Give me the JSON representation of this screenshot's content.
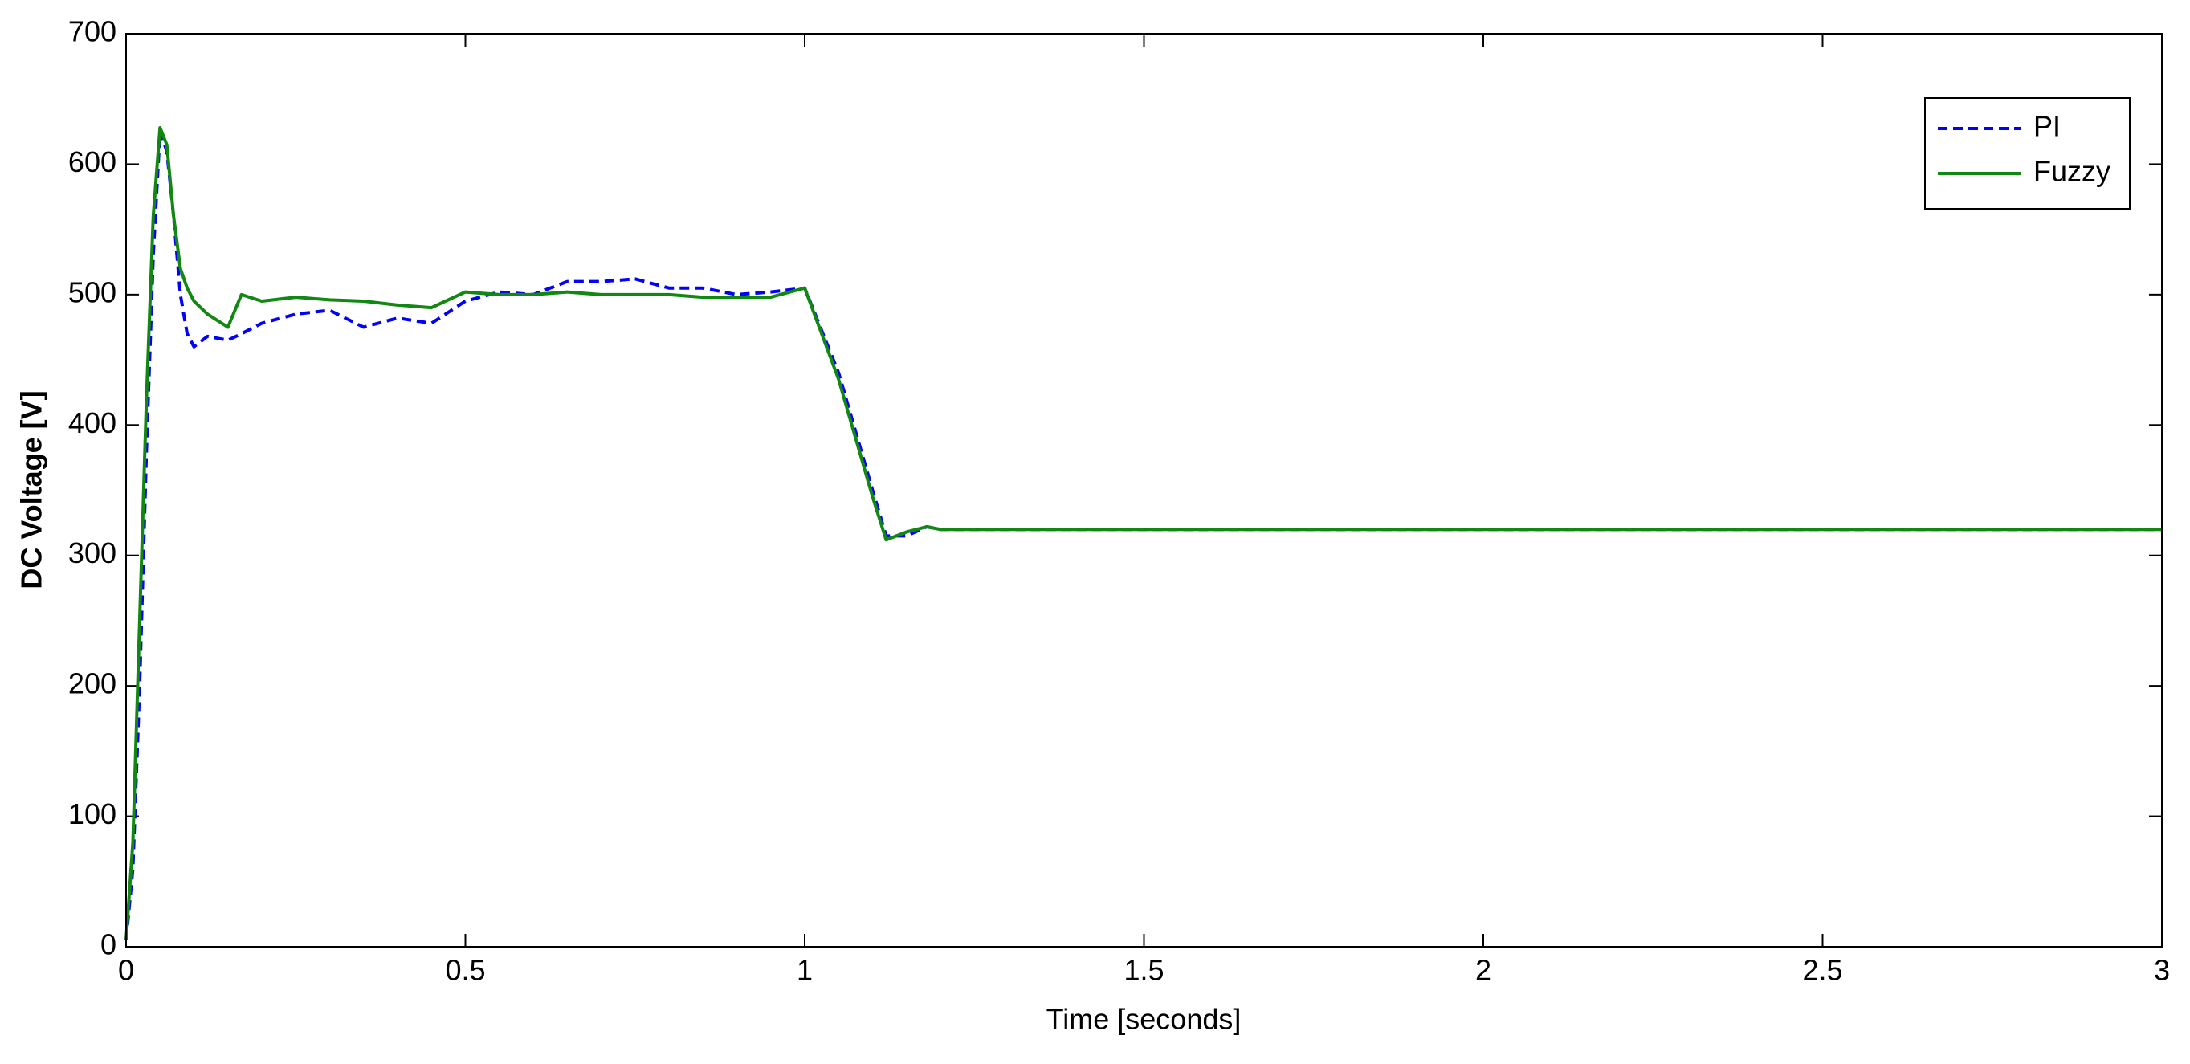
{
  "chart_data": {
    "type": "line",
    "xlabel": "Time [seconds]",
    "ylabel": "DC Voltage [V]",
    "x": [
      0,
      0.01,
      0.02,
      0.03,
      0.04,
      0.05,
      0.06,
      0.07,
      0.08,
      0.09,
      0.1,
      0.12,
      0.15,
      0.17,
      0.2,
      0.25,
      0.3,
      0.35,
      0.4,
      0.45,
      0.5,
      0.55,
      0.6,
      0.65,
      0.7,
      0.75,
      0.8,
      0.85,
      0.9,
      0.95,
      1.0,
      1.05,
      1.1,
      1.12,
      1.15,
      1.18,
      1.2,
      1.3,
      1.4,
      1.5,
      1.6,
      1.7,
      1.8,
      1.9,
      2.0,
      2.2,
      2.4,
      2.6,
      2.8,
      3.0
    ],
    "series": [
      {
        "name": "PI",
        "color": "#0000ff",
        "dashed": true,
        "values": [
          5,
          60,
          200,
          380,
          530,
          625,
          610,
          560,
          500,
          470,
          460,
          468,
          465,
          470,
          478,
          485,
          488,
          475,
          482,
          478,
          495,
          502,
          500,
          510,
          510,
          512,
          505,
          505,
          500,
          502,
          505,
          440,
          350,
          315,
          315,
          322,
          320,
          320,
          320,
          320,
          320,
          320,
          320,
          320,
          320,
          320,
          320,
          320,
          320,
          320
        ]
      },
      {
        "name": "Fuzzy",
        "color": "#118811",
        "dashed": false,
        "values": [
          5,
          80,
          250,
          420,
          560,
          628,
          615,
          560,
          520,
          505,
          495,
          485,
          475,
          500,
          495,
          498,
          496,
          495,
          492,
          490,
          502,
          500,
          500,
          502,
          500,
          500,
          500,
          498,
          498,
          498,
          505,
          435,
          345,
          312,
          318,
          322,
          320,
          320,
          320,
          320,
          320,
          320,
          320,
          320,
          320,
          320,
          320,
          320,
          320,
          320
        ]
      }
    ],
    "xlim": [
      0,
      3
    ],
    "xticks": [
      0,
      0.5,
      1,
      1.5,
      2,
      2.5,
      3
    ],
    "ylim": [
      0,
      700
    ],
    "yticks": [
      0,
      100,
      200,
      300,
      400,
      500,
      600,
      700
    ],
    "grid": false,
    "legend": "northeast"
  }
}
